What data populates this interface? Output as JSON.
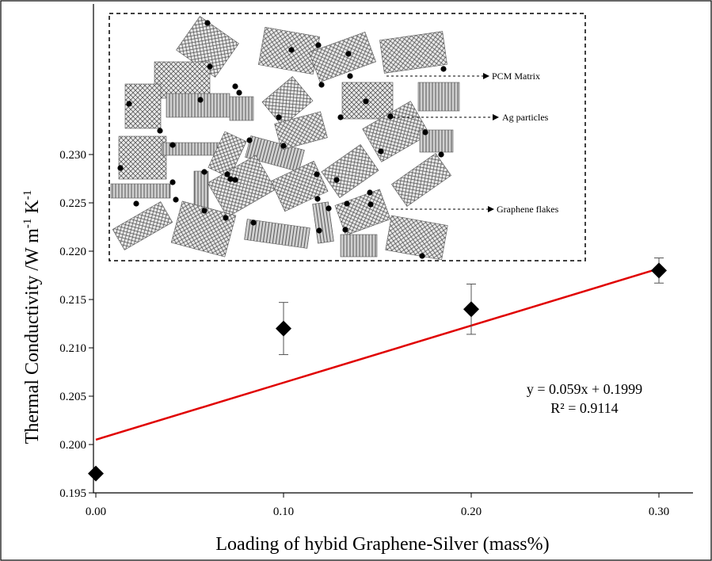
{
  "chart_data": {
    "type": "scatter",
    "title": "",
    "xlabel": "Loading of hybid Graphene-Silver (mass%)",
    "ylabel": "Thermal Conductivity /W m-1 K-1",
    "ylabel_parts": {
      "main": "Thermal Conductivity /W m",
      "exp1": "-1",
      "mid": " K",
      "exp2": "-1"
    },
    "xlim": [
      0,
      0.32
    ],
    "ylim": [
      0.195,
      0.232
    ],
    "x_ticks": [
      0,
      0.1,
      0.2,
      0.3
    ],
    "x_tick_labels": [
      "0.00",
      "0.10",
      "0.20",
      "0.30"
    ],
    "y_ticks": [
      0.195,
      0.2,
      0.205,
      0.21,
      0.215,
      0.22,
      0.225,
      0.23
    ],
    "y_tick_labels": [
      "0.195",
      "0.200",
      "0.205",
      "0.210",
      "0.215",
      "0.220",
      "0.225",
      "0.230"
    ],
    "grid": false,
    "series": [
      {
        "marker": "diamond",
        "color": "#000000",
        "x": [
          0,
          0.1,
          0.2,
          0.3
        ],
        "y": [
          0.197,
          0.212,
          0.214,
          0.218
        ],
        "error": [
          0,
          0.0027,
          0.0026,
          0.0013
        ]
      }
    ],
    "trendline": {
      "color": "#e00000",
      "slope": 0.059,
      "intercept": 0.1999,
      "x_range": [
        0,
        0.3
      ],
      "equation_label": "y = 0.059x + 0.1999",
      "r2_label": "R² = 0.9114"
    },
    "inset": {
      "type": "schematic",
      "labels": [
        "PCM Matrix",
        "Ag particles",
        "Graphene flakes"
      ]
    }
  }
}
